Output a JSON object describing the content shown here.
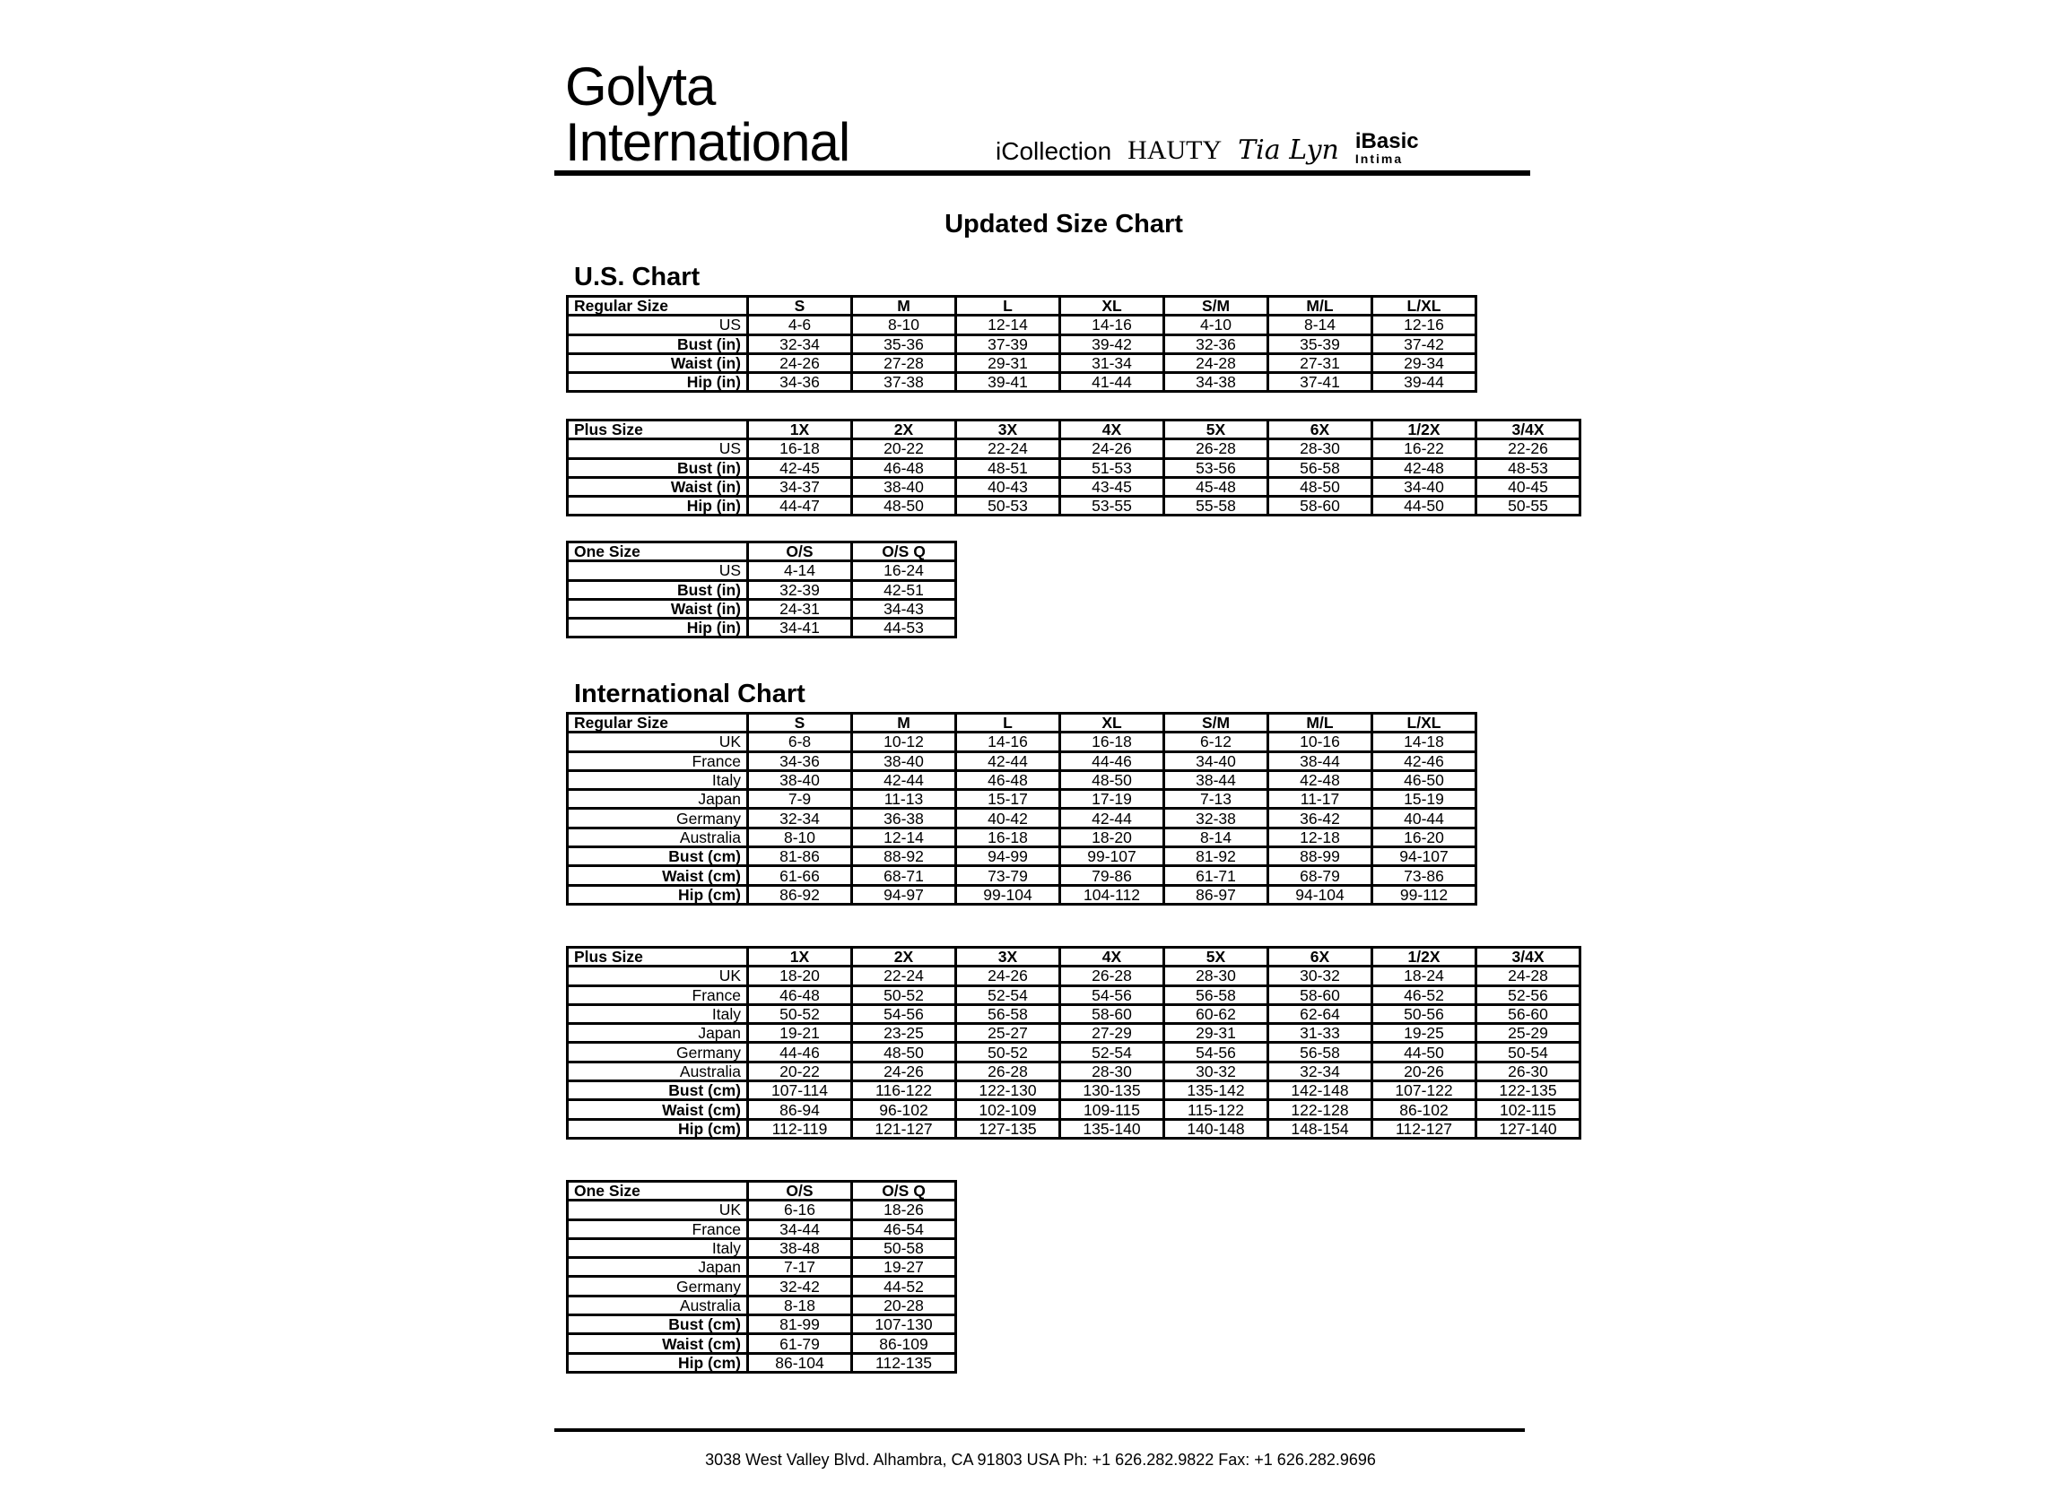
{
  "header": {
    "logo_line1": "Golyta",
    "logo_line2": "International",
    "brands": [
      "iCollection",
      "HAUTY",
      "Tia Lyn",
      "iBasic",
      "Intima"
    ]
  },
  "title": "Updated Size Chart",
  "us": {
    "heading": "U.S. Chart",
    "tables": [
      {
        "corner": "Regular Size",
        "columns": [
          "S",
          "M",
          "L",
          "XL",
          "S/M",
          "M/L",
          "L/XL"
        ],
        "rows": [
          {
            "label": "US",
            "bold": false,
            "values": [
              "4-6",
              "8-10",
              "12-14",
              "14-16",
              "4-10",
              "8-14",
              "12-16"
            ]
          },
          {
            "label": "Bust (in)",
            "bold": true,
            "values": [
              "32-34",
              "35-36",
              "37-39",
              "39-42",
              "32-36",
              "35-39",
              "37-42"
            ]
          },
          {
            "label": "Waist (in)",
            "bold": true,
            "values": [
              "24-26",
              "27-28",
              "29-31",
              "31-34",
              "24-28",
              "27-31",
              "29-34"
            ]
          },
          {
            "label": "Hip (in)",
            "bold": true,
            "values": [
              "34-36",
              "37-38",
              "39-41",
              "41-44",
              "34-38",
              "37-41",
              "39-44"
            ]
          }
        ]
      },
      {
        "corner": "Plus Size",
        "columns": [
          "1X",
          "2X",
          "3X",
          "4X",
          "5X",
          "6X",
          "1/2X",
          "3/4X"
        ],
        "rows": [
          {
            "label": "US",
            "bold": false,
            "values": [
              "16-18",
              "20-22",
              "22-24",
              "24-26",
              "26-28",
              "28-30",
              "16-22",
              "22-26"
            ]
          },
          {
            "label": "Bust (in)",
            "bold": true,
            "values": [
              "42-45",
              "46-48",
              "48-51",
              "51-53",
              "53-56",
              "56-58",
              "42-48",
              "48-53"
            ]
          },
          {
            "label": "Waist (in)",
            "bold": true,
            "values": [
              "34-37",
              "38-40",
              "40-43",
              "43-45",
              "45-48",
              "48-50",
              "34-40",
              "40-45"
            ]
          },
          {
            "label": "Hip (in)",
            "bold": true,
            "values": [
              "44-47",
              "48-50",
              "50-53",
              "53-55",
              "55-58",
              "58-60",
              "44-50",
              "50-55"
            ]
          }
        ]
      },
      {
        "corner": "One Size",
        "columns": [
          "O/S",
          "O/S Q"
        ],
        "rows": [
          {
            "label": "US",
            "bold": false,
            "values": [
              "4-14",
              "16-24"
            ]
          },
          {
            "label": "Bust (in)",
            "bold": true,
            "values": [
              "32-39",
              "42-51"
            ]
          },
          {
            "label": "Waist (in)",
            "bold": true,
            "values": [
              "24-31",
              "34-43"
            ]
          },
          {
            "label": "Hip (in)",
            "bold": true,
            "values": [
              "34-41",
              "44-53"
            ]
          }
        ]
      }
    ]
  },
  "intl": {
    "heading": "International Chart",
    "tables": [
      {
        "corner": "Regular Size",
        "columns": [
          "S",
          "M",
          "L",
          "XL",
          "S/M",
          "M/L",
          "L/XL"
        ],
        "rows": [
          {
            "label": "UK",
            "bold": false,
            "values": [
              "6-8",
              "10-12",
              "14-16",
              "16-18",
              "6-12",
              "10-16",
              "14-18"
            ]
          },
          {
            "label": "France",
            "bold": false,
            "values": [
              "34-36",
              "38-40",
              "42-44",
              "44-46",
              "34-40",
              "38-44",
              "42-46"
            ]
          },
          {
            "label": "Italy",
            "bold": false,
            "values": [
              "38-40",
              "42-44",
              "46-48",
              "48-50",
              "38-44",
              "42-48",
              "46-50"
            ]
          },
          {
            "label": "Japan",
            "bold": false,
            "values": [
              "7-9",
              "11-13",
              "15-17",
              "17-19",
              "7-13",
              "11-17",
              "15-19"
            ]
          },
          {
            "label": "Germany",
            "bold": false,
            "values": [
              "32-34",
              "36-38",
              "40-42",
              "42-44",
              "32-38",
              "36-42",
              "40-44"
            ]
          },
          {
            "label": "Australia",
            "bold": false,
            "values": [
              "8-10",
              "12-14",
              "16-18",
              "18-20",
              "8-14",
              "12-18",
              "16-20"
            ]
          },
          {
            "label": "Bust (cm)",
            "bold": true,
            "values": [
              "81-86",
              "88-92",
              "94-99",
              "99-107",
              "81-92",
              "88-99",
              "94-107"
            ]
          },
          {
            "label": "Waist (cm)",
            "bold": true,
            "values": [
              "61-66",
              "68-71",
              "73-79",
              "79-86",
              "61-71",
              "68-79",
              "73-86"
            ]
          },
          {
            "label": "Hip (cm)",
            "bold": true,
            "values": [
              "86-92",
              "94-97",
              "99-104",
              "104-112",
              "86-97",
              "94-104",
              "99-112"
            ]
          }
        ]
      },
      {
        "corner": "Plus Size",
        "columns": [
          "1X",
          "2X",
          "3X",
          "4X",
          "5X",
          "6X",
          "1/2X",
          "3/4X"
        ],
        "rows": [
          {
            "label": "UK",
            "bold": false,
            "values": [
              "18-20",
              "22-24",
              "24-26",
              "26-28",
              "28-30",
              "30-32",
              "18-24",
              "24-28"
            ]
          },
          {
            "label": "France",
            "bold": false,
            "values": [
              "46-48",
              "50-52",
              "52-54",
              "54-56",
              "56-58",
              "58-60",
              "46-52",
              "52-56"
            ]
          },
          {
            "label": "Italy",
            "bold": false,
            "values": [
              "50-52",
              "54-56",
              "56-58",
              "58-60",
              "60-62",
              "62-64",
              "50-56",
              "56-60"
            ]
          },
          {
            "label": "Japan",
            "bold": false,
            "values": [
              "19-21",
              "23-25",
              "25-27",
              "27-29",
              "29-31",
              "31-33",
              "19-25",
              "25-29"
            ]
          },
          {
            "label": "Germany",
            "bold": false,
            "values": [
              "44-46",
              "48-50",
              "50-52",
              "52-54",
              "54-56",
              "56-58",
              "44-50",
              "50-54"
            ]
          },
          {
            "label": "Australia",
            "bold": false,
            "values": [
              "20-22",
              "24-26",
              "26-28",
              "28-30",
              "30-32",
              "32-34",
              "20-26",
              "26-30"
            ]
          },
          {
            "label": "Bust (cm)",
            "bold": true,
            "values": [
              "107-114",
              "116-122",
              "122-130",
              "130-135",
              "135-142",
              "142-148",
              "107-122",
              "122-135"
            ]
          },
          {
            "label": "Waist (cm)",
            "bold": true,
            "values": [
              "86-94",
              "96-102",
              "102-109",
              "109-115",
              "115-122",
              "122-128",
              "86-102",
              "102-115"
            ]
          },
          {
            "label": "Hip (cm)",
            "bold": true,
            "values": [
              "112-119",
              "121-127",
              "127-135",
              "135-140",
              "140-148",
              "148-154",
              "112-127",
              "127-140"
            ]
          }
        ]
      },
      {
        "corner": "One Size",
        "columns": [
          "O/S",
          "O/S Q"
        ],
        "rows": [
          {
            "label": "UK",
            "bold": false,
            "values": [
              "6-16",
              "18-26"
            ]
          },
          {
            "label": "France",
            "bold": false,
            "values": [
              "34-44",
              "46-54"
            ]
          },
          {
            "label": "Italy",
            "bold": false,
            "values": [
              "38-48",
              "50-58"
            ]
          },
          {
            "label": "Japan",
            "bold": false,
            "values": [
              "7-17",
              "19-27"
            ]
          },
          {
            "label": "Germany",
            "bold": false,
            "values": [
              "32-42",
              "44-52"
            ]
          },
          {
            "label": "Australia",
            "bold": false,
            "values": [
              "8-18",
              "20-28"
            ]
          },
          {
            "label": "Bust (cm)",
            "bold": true,
            "values": [
              "81-99",
              "107-130"
            ]
          },
          {
            "label": "Waist (cm)",
            "bold": true,
            "values": [
              "61-79",
              "86-109"
            ]
          },
          {
            "label": "Hip (cm)",
            "bold": true,
            "values": [
              "86-104",
              "112-135"
            ]
          }
        ]
      }
    ]
  },
  "footer": "3038 West Valley Blvd. Alhambra, CA 91803 USA   Ph: +1 626.282.9822   Fax: +1 626.282.9696"
}
